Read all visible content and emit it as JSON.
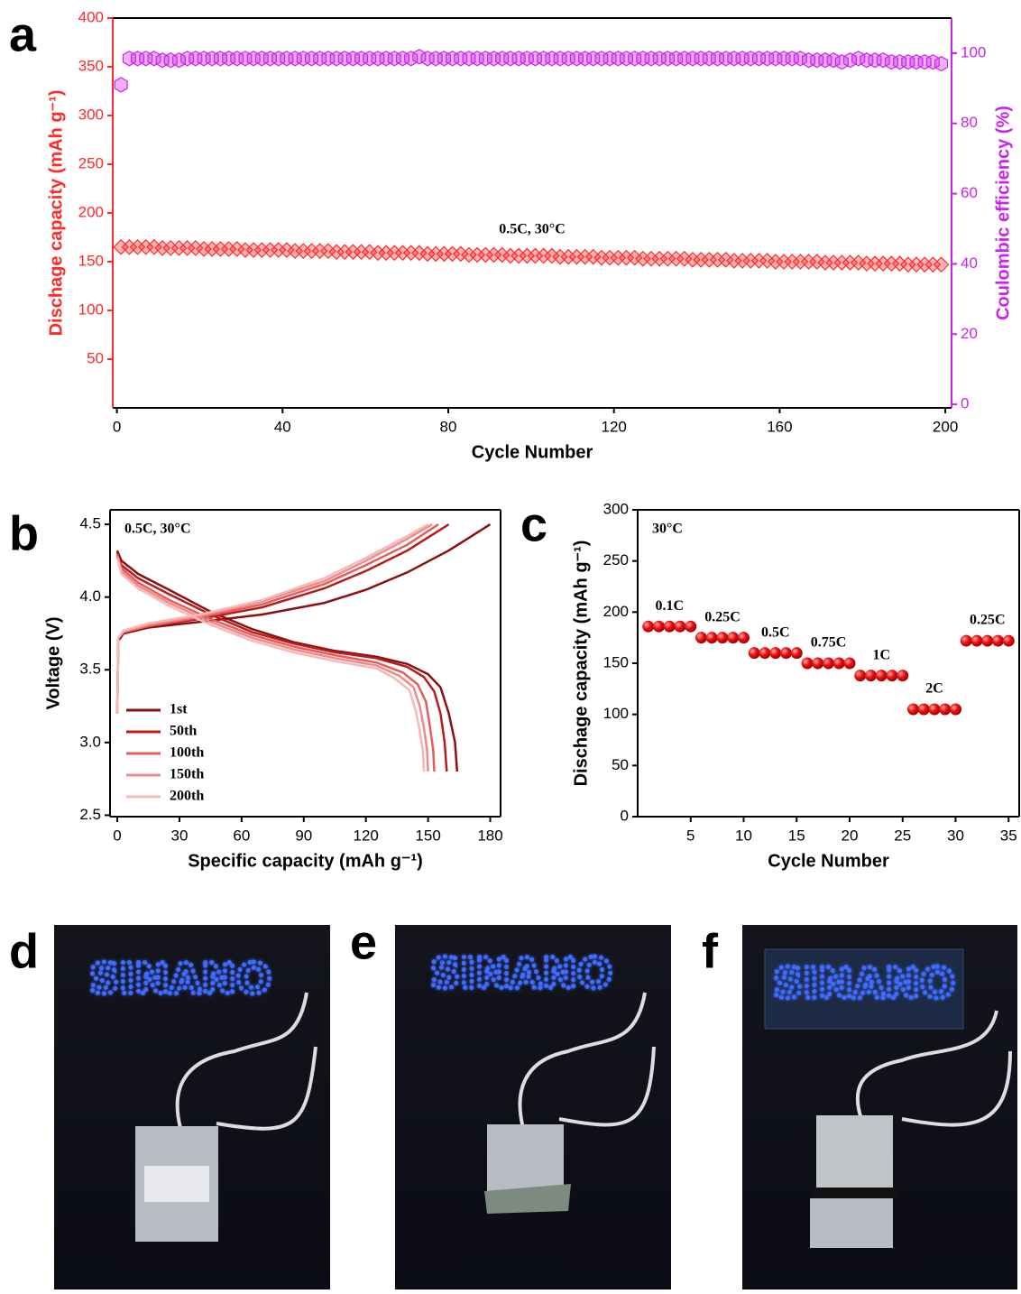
{
  "panel_labels": [
    "a",
    "b",
    "c"
  ],
  "chart_data": [
    {
      "type": "scatter",
      "annotation": "0.5C, 30°C",
      "xlabel": "Cycle Number",
      "ylabel": "Dischage capacity  (mAh g⁻¹)",
      "y2label": "Coulombic efficiency (%)",
      "xlim": [
        -1,
        201.5
      ],
      "xticks": [
        0,
        40,
        80,
        120,
        160,
        200
      ],
      "ylim": [
        0,
        400
      ],
      "yticks": [
        50,
        100,
        150,
        200,
        250,
        300,
        350,
        400
      ],
      "y2lim": [
        -1,
        110
      ],
      "y2ticks": [
        0,
        20,
        40,
        60,
        80,
        100
      ],
      "x": [
        1,
        3,
        5,
        7,
        9,
        11,
        13,
        15,
        17,
        19,
        21,
        23,
        25,
        27,
        29,
        31,
        33,
        35,
        37,
        39,
        41,
        43,
        45,
        47,
        49,
        51,
        53,
        55,
        57,
        59,
        61,
        63,
        65,
        67,
        69,
        71,
        73,
        75,
        77,
        79,
        81,
        83,
        85,
        87,
        89,
        91,
        93,
        95,
        97,
        99,
        101,
        103,
        105,
        107,
        109,
        111,
        113,
        115,
        117,
        119,
        121,
        123,
        125,
        127,
        129,
        131,
        133,
        135,
        137,
        139,
        141,
        143,
        145,
        147,
        149,
        151,
        153,
        155,
        157,
        159,
        161,
        163,
        165,
        167,
        169,
        171,
        173,
        175,
        177,
        179,
        181,
        183,
        185,
        187,
        189,
        191,
        193,
        195,
        197,
        199
      ],
      "series": [
        {
          "color": "#ff2a2a",
          "marker": "diamond",
          "values": [
            165,
            165,
            165,
            165,
            165,
            164,
            164,
            164,
            164,
            164,
            163,
            163,
            163,
            163,
            163,
            162,
            162,
            162,
            162,
            162,
            162,
            161,
            161,
            161,
            161,
            161,
            160,
            160,
            160,
            160,
            160,
            159,
            159,
            159,
            159,
            159,
            159,
            158,
            158,
            158,
            158,
            158,
            157,
            157,
            157,
            157,
            157,
            156,
            156,
            156,
            156,
            156,
            156,
            155,
            155,
            155,
            155,
            155,
            154,
            154,
            154,
            154,
            154,
            153,
            153,
            153,
            153,
            153,
            153,
            152,
            152,
            152,
            152,
            152,
            151,
            151,
            151,
            151,
            151,
            150,
            150,
            150,
            150,
            150,
            150,
            149,
            149,
            149,
            149,
            149,
            148,
            148,
            148,
            148,
            148,
            147,
            147,
            147,
            147,
            147
          ]
        },
        {
          "color": "#cc22ee",
          "marker": "hexagon",
          "axis": "y2",
          "values": [
            91,
            98.5,
            98.5,
            98.5,
            98.5,
            98,
            98,
            98,
            98.5,
            98.5,
            98.5,
            98.5,
            98.5,
            98.5,
            98.5,
            98.5,
            98.5,
            98.5,
            98.5,
            98.5,
            98.5,
            98.5,
            98.5,
            98.5,
            98.5,
            98.5,
            98.5,
            98.5,
            98.5,
            98.5,
            98.5,
            98.5,
            98.5,
            98.5,
            98.5,
            98.5,
            99,
            98.5,
            98.5,
            98.5,
            98.5,
            98.5,
            98.5,
            98.5,
            98.5,
            98.5,
            98.5,
            98.5,
            98.5,
            98.5,
            98.5,
            98.5,
            98.5,
            98.5,
            98.5,
            98.5,
            98.5,
            98.5,
            98.5,
            98.5,
            98.5,
            98.5,
            98.5,
            98.5,
            98.5,
            98.5,
            98.5,
            98.5,
            98.5,
            98.5,
            98.5,
            98.5,
            98.5,
            98.5,
            98.5,
            98.5,
            98.5,
            98.5,
            98.5,
            98.5,
            98.5,
            98.5,
            98.5,
            98,
            98,
            98,
            98,
            97.5,
            98,
            98.5,
            98,
            98,
            98,
            97.5,
            97.5,
            97.5,
            97.5,
            97.5,
            97.5,
            97
          ]
        }
      ]
    },
    {
      "type": "line",
      "annotation": "0.5C, 30°C",
      "xlabel": "Specific capacity  (mAh g⁻¹)",
      "ylabel": "Voltage (V)",
      "xlim": [
        -3.5,
        185
      ],
      "xticks": [
        0,
        30,
        60,
        90,
        120,
        150,
        180
      ],
      "ylim": [
        2.49,
        4.6
      ],
      "yticks": [
        2.5,
        {
          "value": 3,
          "label": "3.0"
        },
        3.5,
        {
          "value": 4,
          "label": "4.0"
        },
        4.5
      ],
      "series": [
        {
          "name": "1st",
          "color": "#8b1010",
          "x": [
            0,
            2,
            10,
            25,
            45,
            65,
            85,
            105,
            125,
            140,
            150,
            156,
            160,
            163,
            164,
            null,
            0,
            0.5,
            3,
            15,
            40,
            70,
            100,
            120,
            140,
            160,
            180
          ],
          "values": [
            4.32,
            4.25,
            4.16,
            4.05,
            3.9,
            3.78,
            3.69,
            3.63,
            3.59,
            3.54,
            3.47,
            3.38,
            3.2,
            3.0,
            2.8,
            null,
            3.2,
            3.7,
            3.75,
            3.79,
            3.83,
            3.88,
            3.96,
            4.05,
            4.17,
            4.32,
            4.5
          ]
        },
        {
          "name": "50th",
          "color": "#b81c1c",
          "x": [
            0,
            2,
            10,
            25,
            45,
            65,
            85,
            105,
            125,
            140,
            148,
            153,
            156,
            158,
            159,
            null,
            0,
            0.5,
            3,
            15,
            40,
            70,
            100,
            120,
            140,
            160
          ],
          "values": [
            4.31,
            4.22,
            4.13,
            4.02,
            3.88,
            3.76,
            3.68,
            3.62,
            3.58,
            3.52,
            3.45,
            3.35,
            3.2,
            3.0,
            2.8,
            null,
            3.2,
            3.72,
            3.76,
            3.8,
            3.85,
            3.93,
            4.06,
            4.18,
            4.32,
            4.5
          ]
        },
        {
          "name": "100th",
          "color": "#e35d5d",
          "x": [
            0,
            2,
            10,
            25,
            45,
            65,
            85,
            105,
            125,
            138,
            145,
            149,
            151,
            152.5,
            153,
            null,
            0,
            0.5,
            3,
            15,
            40,
            70,
            100,
            120,
            140,
            155
          ],
          "values": [
            4.29,
            4.2,
            4.1,
            3.98,
            3.85,
            3.74,
            3.66,
            3.6,
            3.55,
            3.48,
            3.4,
            3.28,
            3.1,
            2.95,
            2.8,
            null,
            3.2,
            3.72,
            3.76,
            3.8,
            3.86,
            3.95,
            4.09,
            4.22,
            4.36,
            4.5
          ]
        },
        {
          "name": "150th",
          "color": "#f08a8a",
          "x": [
            0,
            2,
            10,
            25,
            45,
            65,
            85,
            105,
            125,
            136,
            143,
            146,
            148,
            149.5,
            150,
            null,
            0,
            0.5,
            3,
            15,
            40,
            70,
            100,
            120,
            140,
            152
          ],
          "values": [
            4.28,
            4.18,
            4.08,
            3.96,
            3.83,
            3.72,
            3.64,
            3.58,
            3.53,
            3.46,
            3.38,
            3.25,
            3.1,
            2.95,
            2.8,
            null,
            3.2,
            3.72,
            3.76,
            3.81,
            3.87,
            3.97,
            4.11,
            4.25,
            4.4,
            4.5
          ]
        },
        {
          "name": "200th",
          "color": "#f6b8b8",
          "x": [
            0,
            2,
            10,
            25,
            45,
            65,
            85,
            105,
            125,
            134,
            141,
            144,
            146,
            147.5,
            148,
            null,
            0,
            0.5,
            3,
            15,
            40,
            70,
            100,
            120,
            140,
            150
          ],
          "values": [
            4.27,
            4.16,
            4.06,
            3.94,
            3.81,
            3.7,
            3.62,
            3.56,
            3.51,
            3.44,
            3.36,
            3.22,
            3.08,
            2.94,
            2.8,
            null,
            3.2,
            3.72,
            3.77,
            3.82,
            3.88,
            3.98,
            4.13,
            4.27,
            4.42,
            4.5
          ]
        }
      ],
      "legend": "lower left"
    },
    {
      "type": "scatter",
      "annotation": "30°C",
      "xlabel": "Cycle Number",
      "ylabel": "Dischage capacity  (mAh g⁻¹)",
      "xlim": [
        0,
        36
      ],
      "xticks": [
        5,
        10,
        15,
        20,
        25,
        30,
        35
      ],
      "ylim": [
        0,
        300
      ],
      "yticks": [
        0,
        50,
        100,
        150,
        200,
        250,
        300
      ],
      "x": [
        1,
        2,
        3,
        4,
        5,
        6,
        7,
        8,
        9,
        10,
        11,
        12,
        13,
        14,
        15,
        16,
        17,
        18,
        19,
        20,
        21,
        22,
        23,
        24,
        25,
        26,
        27,
        28,
        29,
        30,
        31,
        32,
        33,
        34,
        35
      ],
      "series": [
        {
          "color": "#ee1111",
          "marker": "ball",
          "values": [
            186,
            186,
            186,
            186,
            186,
            175,
            175,
            175,
            175,
            175,
            160,
            160,
            160,
            160,
            160,
            150,
            150,
            150,
            150,
            150,
            138,
            138,
            138,
            138,
            138,
            105,
            105,
            105,
            105,
            105,
            172,
            172,
            172,
            172,
            172
          ]
        }
      ],
      "rate_labels": [
        "0.1C",
        "0.25C",
        "0.5C",
        "0.75C",
        "1C",
        "2C",
        "0.25C"
      ]
    }
  ],
  "photos": [
    {
      "label": "d",
      "sign": "SINANO"
    },
    {
      "label": "e",
      "sign": "SINANO"
    },
    {
      "label": "f",
      "sign": "SINANO"
    }
  ]
}
